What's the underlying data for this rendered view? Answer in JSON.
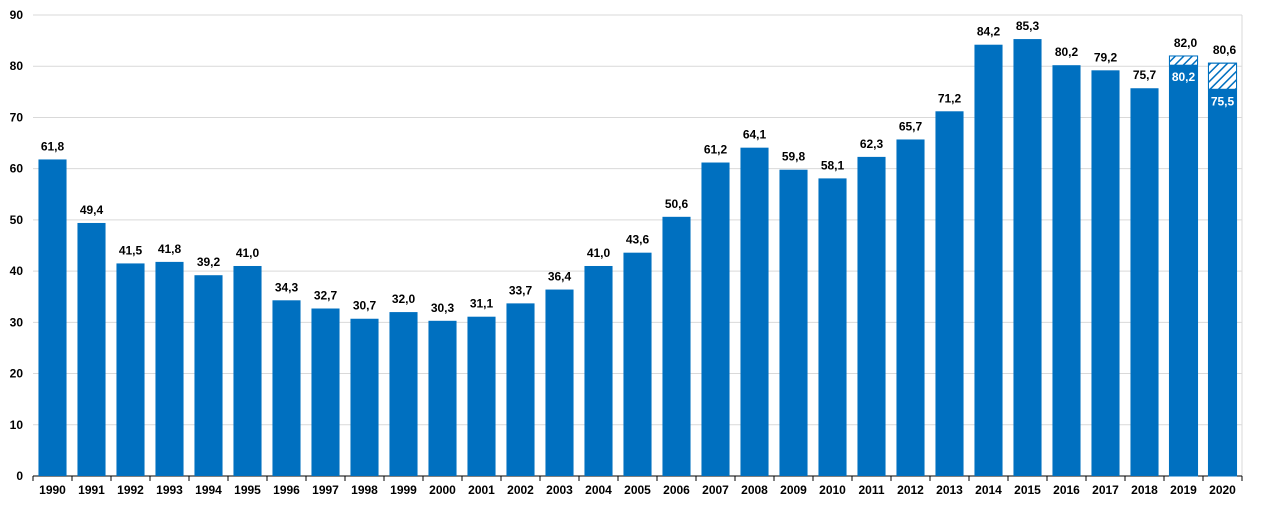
{
  "chart_data": {
    "type": "bar",
    "title": "",
    "xlabel": "",
    "ylabel": "",
    "ylim": [
      0,
      90
    ],
    "yticks": [
      0,
      10,
      20,
      30,
      40,
      50,
      60,
      70,
      80,
      90
    ],
    "grid": true,
    "legend": "none",
    "bar_color": "#0070C0",
    "gridline_color": "#D9D9D9",
    "categories": [
      "1990",
      "1991",
      "1992",
      "1993",
      "1994",
      "1995",
      "1996",
      "1997",
      "1998",
      "1999",
      "2000",
      "2001",
      "2002",
      "2003",
      "2004",
      "2005",
      "2006",
      "2007",
      "2008",
      "2009",
      "2010",
      "2011",
      "2012",
      "2013",
      "2014",
      "2015",
      "2016",
      "2017",
      "2018",
      "2019",
      "2020"
    ],
    "values": [
      61.8,
      49.4,
      41.5,
      41.8,
      39.2,
      41.0,
      34.3,
      32.7,
      30.7,
      32.0,
      30.3,
      31.1,
      33.7,
      36.4,
      41.0,
      43.6,
      50.6,
      61.2,
      64.1,
      59.8,
      58.1,
      62.3,
      65.7,
      71.2,
      84.2,
      85.3,
      80.2,
      79.2,
      75.7,
      80.2,
      75.5
    ],
    "labels": [
      "61,8",
      "49,4",
      "41,5",
      "41,8",
      "39,2",
      "41,0",
      "34,3",
      "32,7",
      "30,7",
      "32,0",
      "30,3",
      "31,1",
      "33,7",
      "36,4",
      "41,0",
      "43,6",
      "50,6",
      "61,2",
      "64,1",
      "59,8",
      "58,1",
      "62,3",
      "65,7",
      "71,2",
      "84,2",
      "85,3",
      "80,2",
      "79,2",
      "75,7",
      "80,2",
      "75,5"
    ],
    "inner_label_years": [
      "2019",
      "2020"
    ],
    "hatched_extensions": [
      {
        "category": "2019",
        "value": 82.0,
        "label": "82,0"
      },
      {
        "category": "2020",
        "value": 80.6,
        "label": "80,6"
      }
    ]
  }
}
